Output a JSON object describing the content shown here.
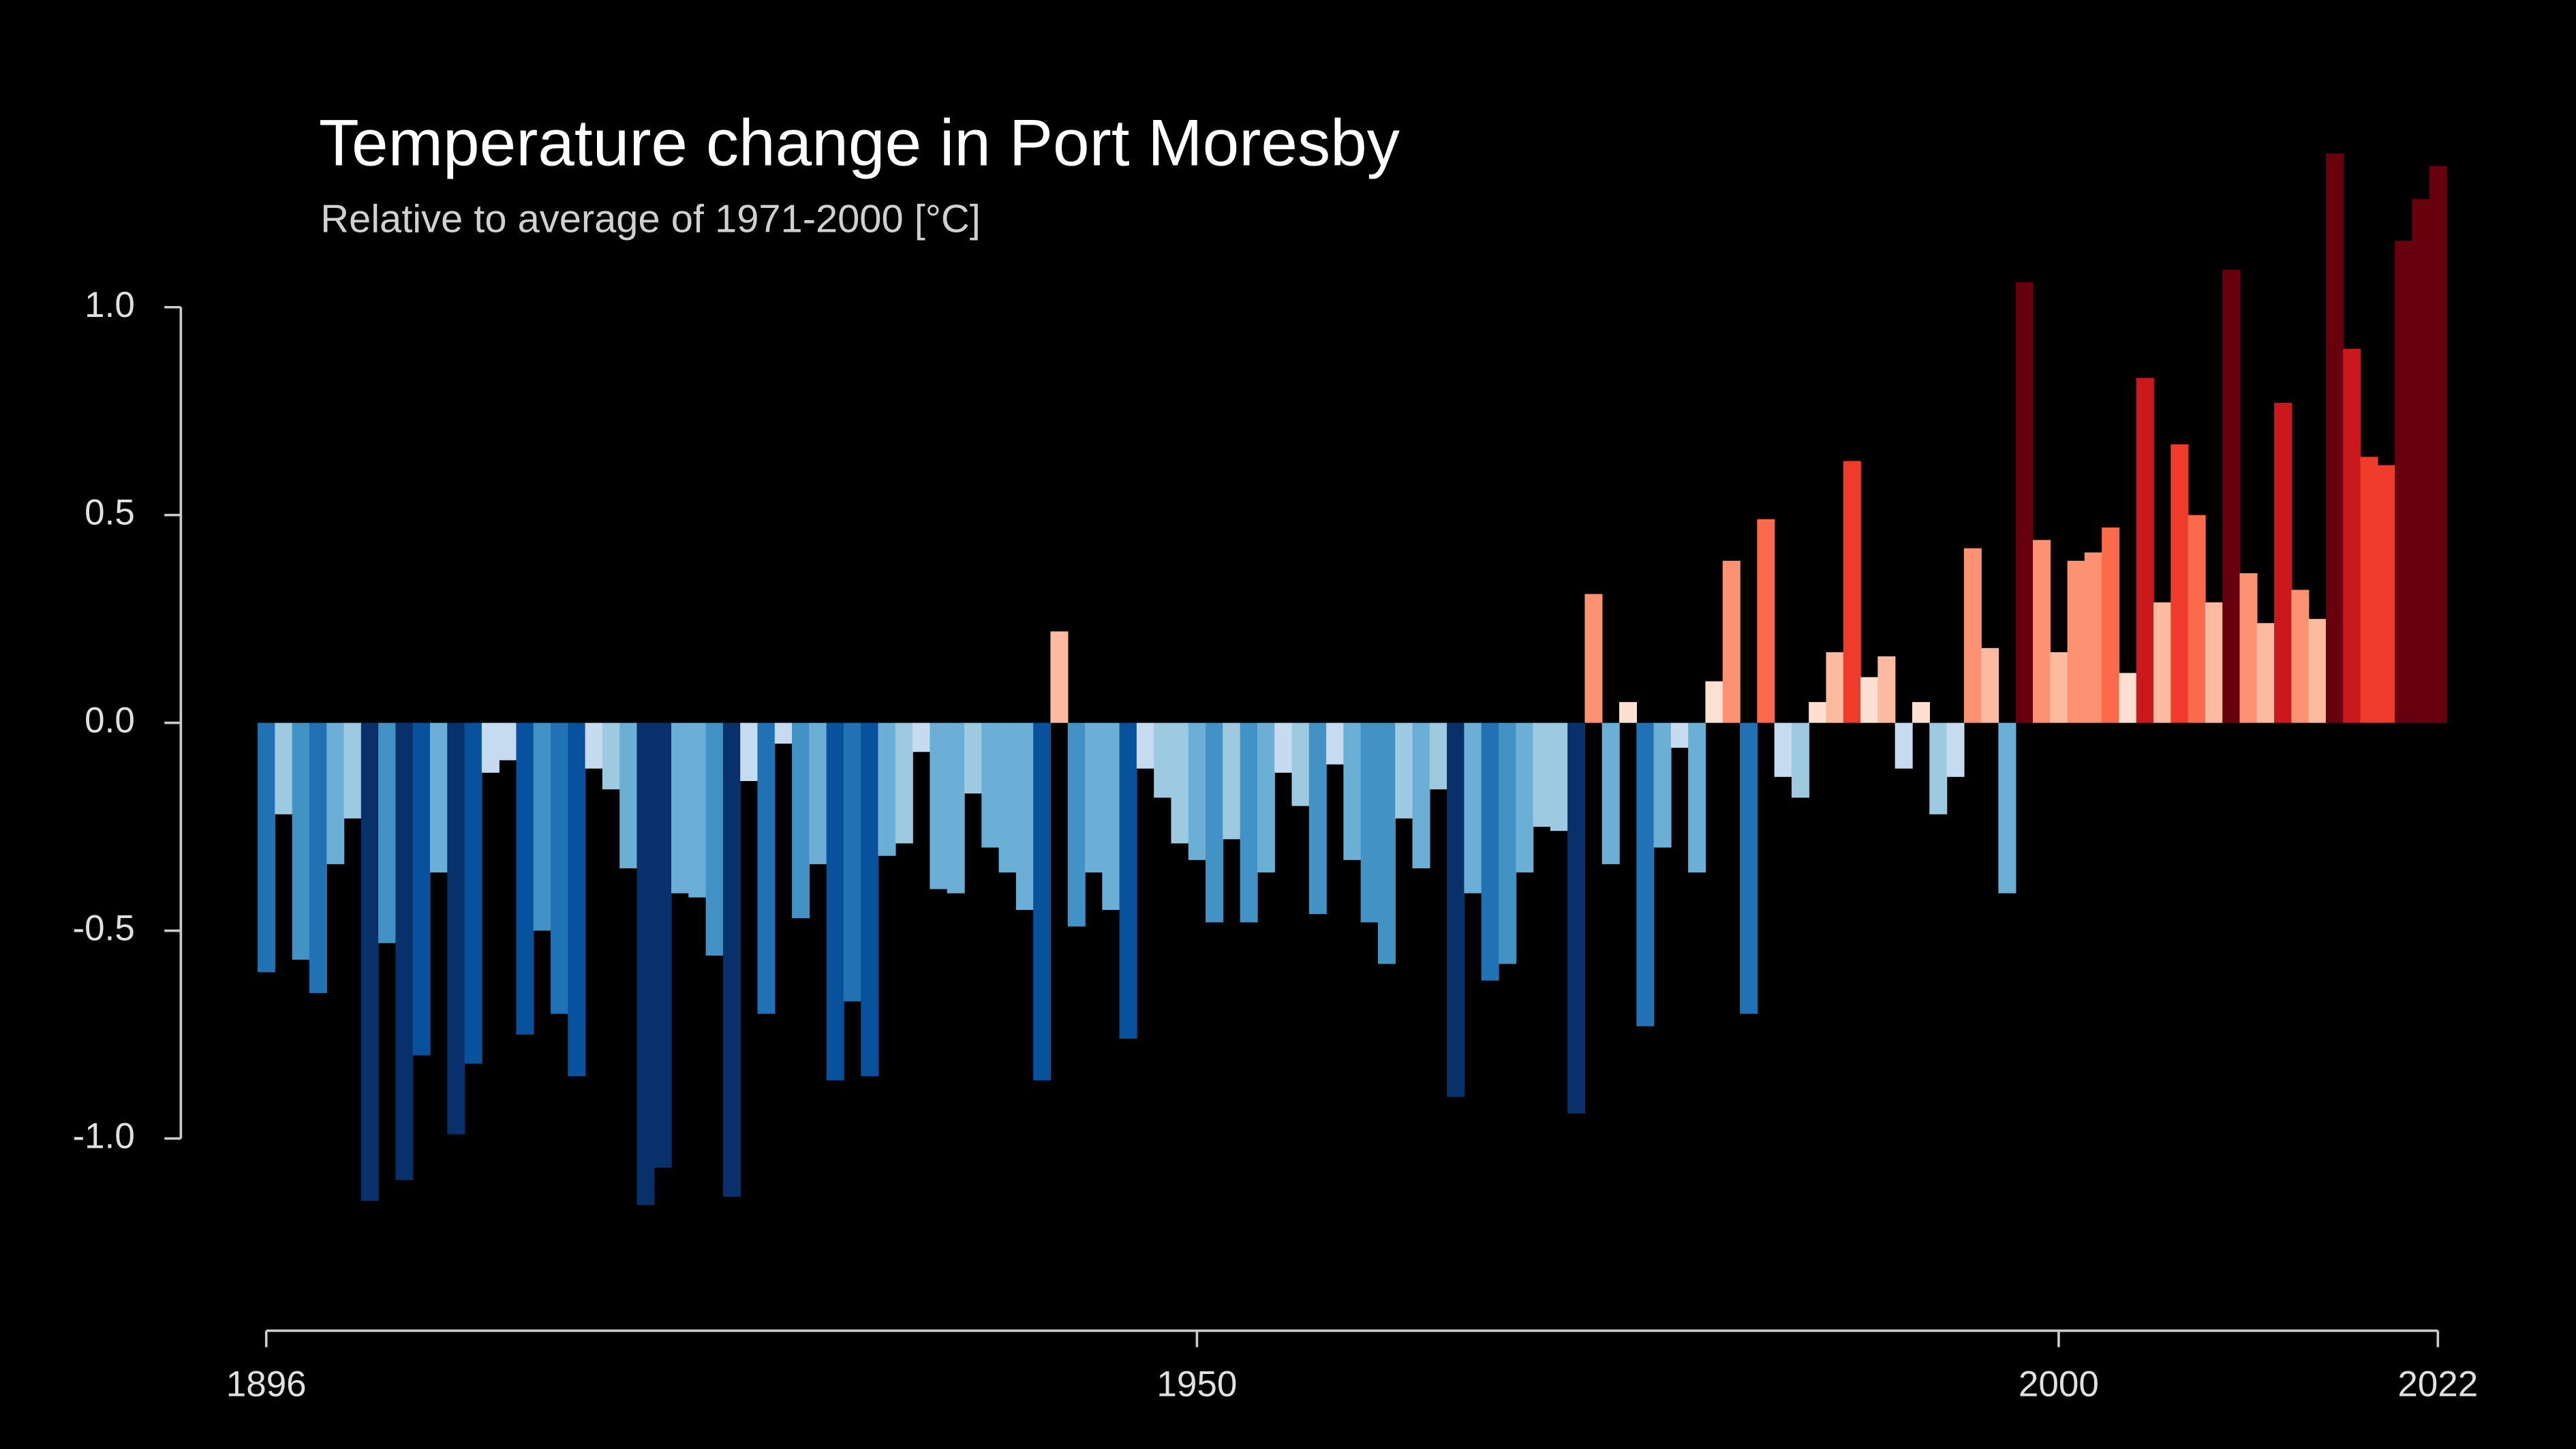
{
  "chart_data": {
    "type": "bar",
    "title": "Temperature change in Port Moresby",
    "subtitle": "Relative to average of 1971-2000  [°C]",
    "x": [
      1896,
      1897,
      1898,
      1899,
      1900,
      1901,
      1902,
      1903,
      1904,
      1905,
      1906,
      1907,
      1908,
      1909,
      1910,
      1911,
      1912,
      1913,
      1914,
      1915,
      1916,
      1917,
      1918,
      1919,
      1920,
      1921,
      1922,
      1923,
      1924,
      1925,
      1926,
      1927,
      1928,
      1929,
      1930,
      1931,
      1932,
      1933,
      1934,
      1935,
      1936,
      1937,
      1938,
      1939,
      1940,
      1941,
      1942,
      1943,
      1944,
      1945,
      1946,
      1947,
      1948,
      1949,
      1950,
      1951,
      1952,
      1953,
      1954,
      1955,
      1956,
      1957,
      1958,
      1959,
      1960,
      1961,
      1962,
      1963,
      1964,
      1965,
      1966,
      1967,
      1968,
      1969,
      1970,
      1971,
      1972,
      1973,
      1974,
      1975,
      1976,
      1977,
      1978,
      1979,
      1980,
      1981,
      1982,
      1983,
      1984,
      1985,
      1986,
      1987,
      1988,
      1989,
      1990,
      1991,
      1992,
      1993,
      1994,
      1995,
      1996,
      1997,
      1998,
      1999,
      2000,
      2001,
      2002,
      2003,
      2004,
      2005,
      2006,
      2007,
      2008,
      2009,
      2010,
      2011,
      2012,
      2013,
      2014,
      2015,
      2016,
      2017,
      2018,
      2019,
      2020,
      2021,
      2022
    ],
    "values": [
      -0.6,
      -0.22,
      -0.57,
      -0.65,
      -0.34,
      -0.23,
      -1.15,
      -0.53,
      -1.1,
      -0.8,
      -0.36,
      -0.99,
      -0.82,
      -0.12,
      -0.09,
      -0.75,
      -0.5,
      -0.7,
      -0.85,
      -0.11,
      -0.16,
      -0.35,
      -1.16,
      -1.07,
      -0.41,
      -0.42,
      -0.56,
      -1.14,
      -0.14,
      -0.7,
      -0.05,
      -0.47,
      -0.34,
      -0.86,
      -0.67,
      -0.85,
      -0.32,
      -0.29,
      -0.07,
      -0.4,
      -0.41,
      -0.17,
      -0.3,
      -0.36,
      -0.45,
      -0.86,
      0.22,
      -0.49,
      -0.36,
      -0.45,
      -0.76,
      -0.11,
      -0.18,
      -0.29,
      -0.33,
      -0.48,
      -0.28,
      -0.48,
      -0.36,
      -0.12,
      -0.2,
      -0.46,
      -0.1,
      -0.33,
      -0.48,
      -0.58,
      -0.23,
      -0.35,
      -0.16,
      -0.9,
      -0.41,
      -0.62,
      -0.58,
      -0.36,
      -0.25,
      -0.26,
      -0.94,
      0.31,
      -0.34,
      0.05,
      -0.73,
      -0.3,
      -0.06,
      -0.36,
      0.1,
      0.39,
      -0.7,
      0.49,
      -0.13,
      -0.18,
      0.05,
      0.17,
      0.63,
      0.11,
      0.16,
      -0.11,
      0.05,
      -0.22,
      -0.13,
      0.42,
      0.18,
      -0.41,
      1.06,
      0.44,
      0.17,
      0.39,
      0.41,
      0.47,
      0.12,
      0.83,
      0.29,
      0.67,
      0.5,
      0.29,
      1.09,
      0.36,
      0.24,
      0.77,
      0.32,
      0.25,
      1.37,
      0.9,
      0.64,
      0.62,
      1.16,
      1.26,
      1.34
    ],
    "colors": [
      "#2171b5",
      "#9ecae1",
      "#4292c6",
      "#2171b5",
      "#6baed6",
      "#9ecae1",
      "#08306b",
      "#4292c6",
      "#08306b",
      "#08519c",
      "#6baed6",
      "#08306b",
      "#08519c",
      "#c6dbef",
      "#c6dbef",
      "#08519c",
      "#4292c6",
      "#2171b5",
      "#08519c",
      "#c6dbef",
      "#9ecae1",
      "#6baed6",
      "#08306b",
      "#08306b",
      "#6baed6",
      "#6baed6",
      "#4292c6",
      "#08306b",
      "#c6dbef",
      "#2171b5",
      "#c6dbef",
      "#4292c6",
      "#6baed6",
      "#08519c",
      "#2171b5",
      "#08519c",
      "#6baed6",
      "#9ecae1",
      "#c6dbef",
      "#6baed6",
      "#6baed6",
      "#9ecae1",
      "#6baed6",
      "#6baed6",
      "#6baed6",
      "#08519c",
      "#fcbba1",
      "#4292c6",
      "#6baed6",
      "#6baed6",
      "#08519c",
      "#c6dbef",
      "#9ecae1",
      "#9ecae1",
      "#6baed6",
      "#4292c6",
      "#9ecae1",
      "#4292c6",
      "#6baed6",
      "#c6dbef",
      "#9ecae1",
      "#4292c6",
      "#c6dbef",
      "#6baed6",
      "#4292c6",
      "#4292c6",
      "#9ecae1",
      "#6baed6",
      "#9ecae1",
      "#08306b",
      "#6baed6",
      "#2171b5",
      "#4292c6",
      "#6baed6",
      "#9ecae1",
      "#9ecae1",
      "#08306b",
      "#fc9272",
      "#6baed6",
      "#fee0d2",
      "#2171b5",
      "#6baed6",
      "#c6dbef",
      "#6baed6",
      "#fee0d2",
      "#fc9272",
      "#2171b5",
      "#fb6a4a",
      "#c6dbef",
      "#9ecae1",
      "#fee0d2",
      "#fcbba1",
      "#ef3b2c",
      "#fee0d2",
      "#fcbba1",
      "#c6dbef",
      "#fee0d2",
      "#9ecae1",
      "#c6dbef",
      "#fc9272",
      "#fcbba1",
      "#6baed6",
      "#67000d",
      "#fc9272",
      "#fcbba1",
      "#fc9272",
      "#fc9272",
      "#fb6a4a",
      "#fee0d2",
      "#cb181d",
      "#fcbba1",
      "#ef3b2c",
      "#fb6a4a",
      "#fcbba1",
      "#67000d",
      "#fc9272",
      "#fcbba1",
      "#cb181d",
      "#fc9272",
      "#fcbba1",
      "#67000d",
      "#cb181d",
      "#ef3b2c",
      "#ef3b2c",
      "#67000d",
      "#67000d",
      "#67000d"
    ],
    "xlim": [
      1896,
      2022
    ],
    "xticks": [
      1896,
      1950,
      2000,
      2022
    ],
    "ylim": [
      -1.5,
      1.5
    ],
    "yticks": [
      {
        "value": 1.0,
        "label": "1.0"
      },
      {
        "value": 0.5,
        "label": "0.5"
      },
      {
        "value": 0.0,
        "label": "0.0"
      },
      {
        "value": -0.5,
        "label": "-0.5"
      },
      {
        "value": -1.0,
        "label": "-1.0"
      }
    ]
  }
}
